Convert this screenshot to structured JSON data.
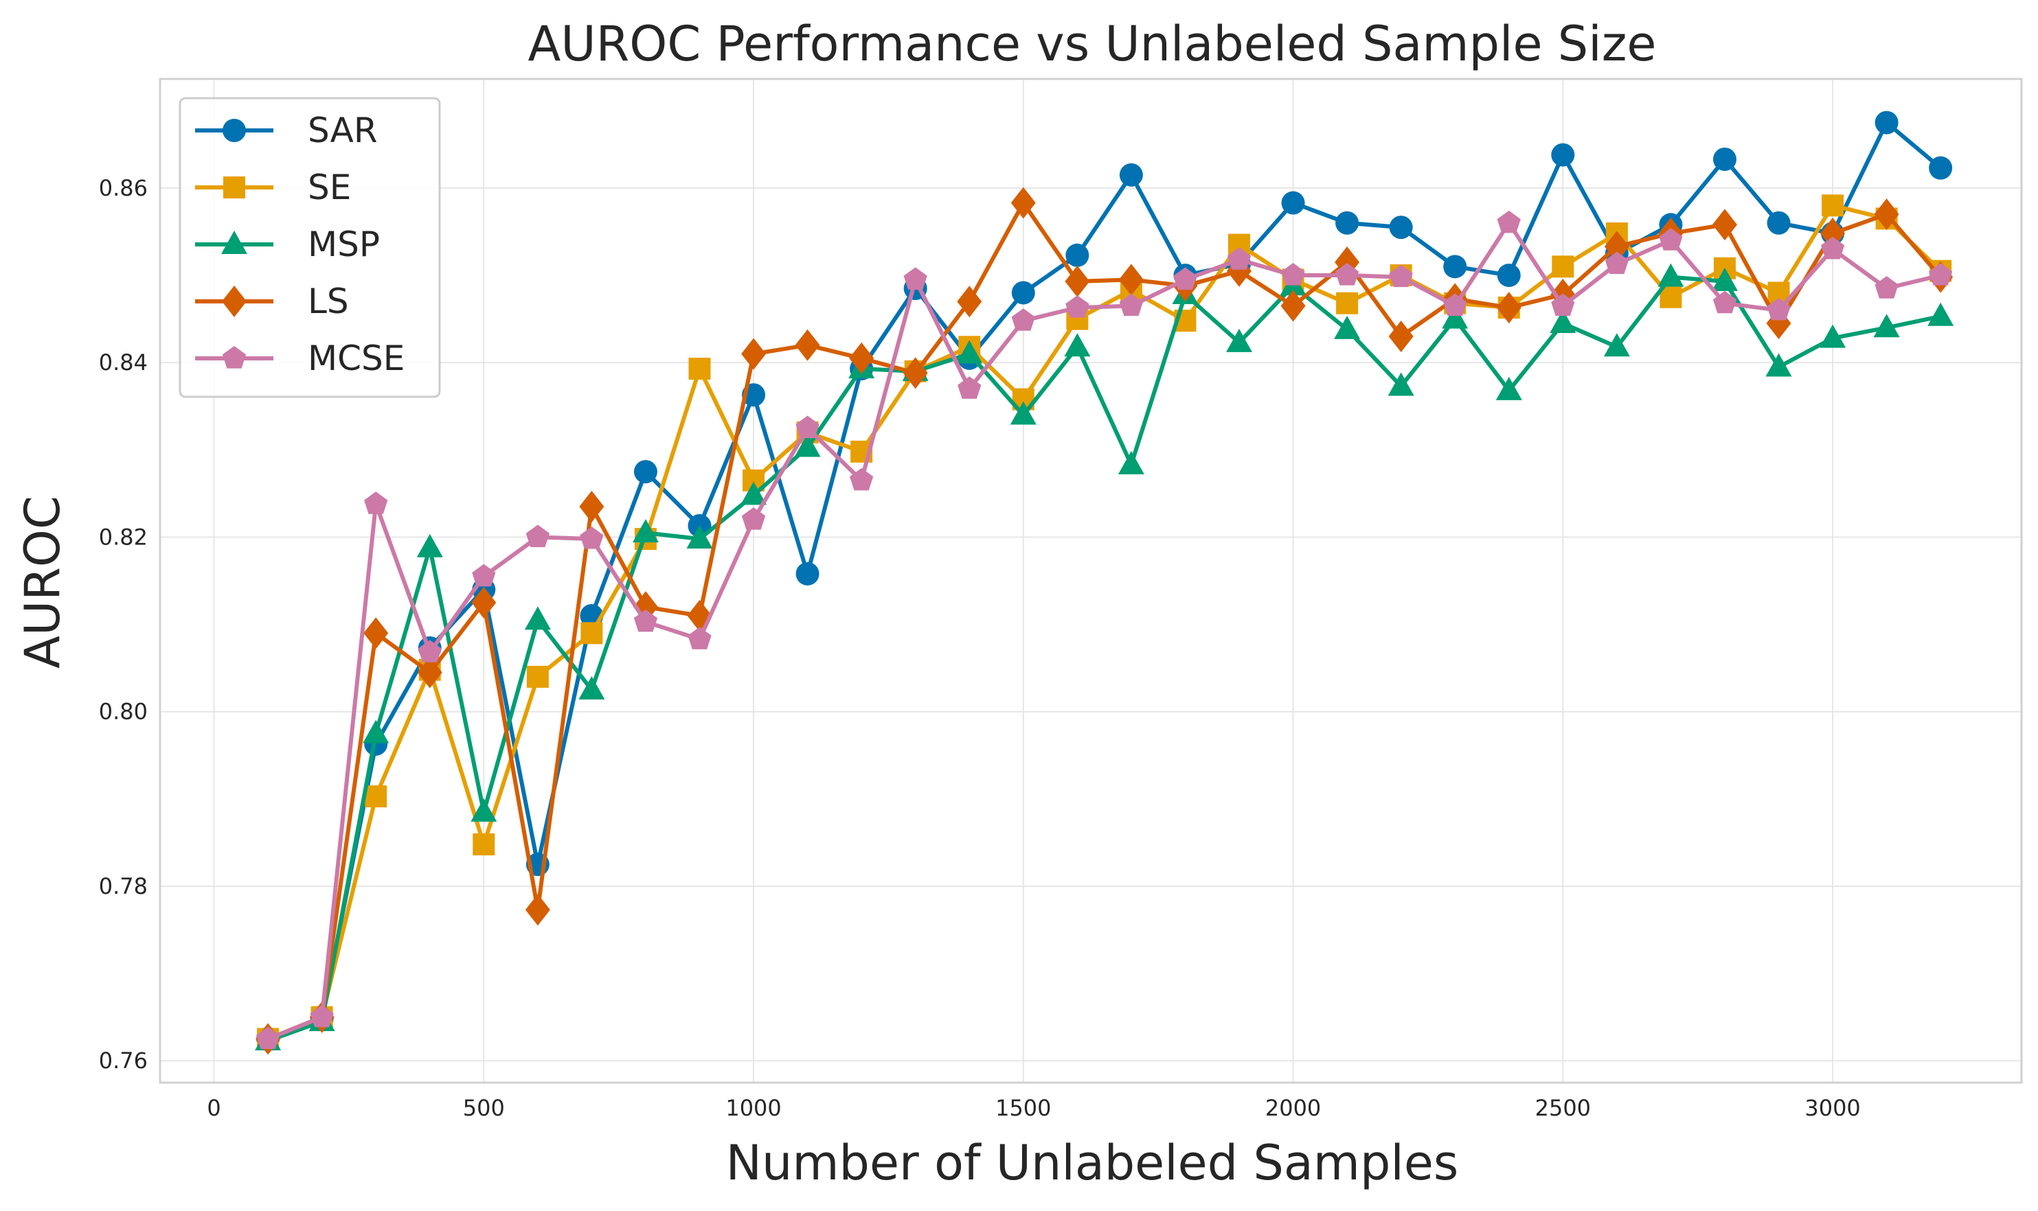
{
  "chart_data": {
    "type": "line",
    "title": "AUROC Performance vs Unlabeled Sample Size",
    "xlabel": "Number of Unlabeled Samples",
    "ylabel": "AUROC",
    "xlim": [
      -100,
      3350
    ],
    "ylim": [
      0.7575,
      0.8725
    ],
    "xticks": [
      0,
      500,
      1000,
      1500,
      2000,
      2500,
      3000
    ],
    "xtick_labels": [
      "0",
      "500",
      "1000",
      "1500",
      "2000",
      "2500",
      "3000"
    ],
    "yticks": [
      0.76,
      0.78,
      0.8,
      0.82,
      0.84,
      0.86
    ],
    "ytick_labels": [
      "0.76",
      "0.78",
      "0.80",
      "0.82",
      "0.84",
      "0.86"
    ],
    "grid": true,
    "legend_position": "top-left",
    "x": [
      100,
      200,
      300,
      400,
      500,
      600,
      700,
      800,
      900,
      1000,
      1100,
      1200,
      1300,
      1400,
      1500,
      1600,
      1700,
      1800,
      1900,
      2000,
      2100,
      2200,
      2300,
      2400,
      2500,
      2600,
      2700,
      2800,
      2900,
      3000,
      3100,
      3200
    ],
    "series": [
      {
        "name": "SAR",
        "color": "#0072b2",
        "marker": "circle",
        "values": [
          0.7625,
          0.7648,
          0.7963,
          0.8073,
          0.814,
          0.7825,
          0.811,
          0.8275,
          0.8213,
          0.8363,
          0.8158,
          0.8393,
          0.8485,
          0.8405,
          0.848,
          0.8523,
          0.8615,
          0.85,
          0.8513,
          0.8583,
          0.856,
          0.8555,
          0.851,
          0.85,
          0.8638,
          0.8525,
          0.8558,
          0.8633,
          0.856,
          0.8548,
          0.8675,
          0.8623
        ]
      },
      {
        "name": "SE",
        "color": "#e69f00",
        "marker": "square",
        "values": [
          0.7625,
          0.765,
          0.7903,
          0.8048,
          0.7848,
          0.804,
          0.809,
          0.8198,
          0.8393,
          0.8265,
          0.832,
          0.8298,
          0.839,
          0.8418,
          0.8358,
          0.845,
          0.8483,
          0.8448,
          0.8535,
          0.8495,
          0.8468,
          0.85,
          0.8468,
          0.8463,
          0.851,
          0.8548,
          0.8475,
          0.8508,
          0.848,
          0.858,
          0.8565,
          0.8505
        ]
      },
      {
        "name": "MSP",
        "color": "#009e73",
        "marker": "triangle",
        "values": [
          0.7623,
          0.7645,
          0.7975,
          0.8188,
          0.7885,
          0.8105,
          0.8025,
          0.8205,
          0.8198,
          0.8248,
          0.8303,
          0.8393,
          0.839,
          0.841,
          0.834,
          0.8418,
          0.8283,
          0.8478,
          0.8423,
          0.8488,
          0.8438,
          0.8373,
          0.845,
          0.8368,
          0.8445,
          0.8418,
          0.8498,
          0.8493,
          0.8395,
          0.8428,
          0.844,
          0.8453
        ]
      },
      {
        "name": "LS",
        "color": "#d55e00",
        "marker": "diamond",
        "values": [
          0.7625,
          0.765,
          0.809,
          0.8045,
          0.8125,
          0.7773,
          0.8235,
          0.812,
          0.811,
          0.841,
          0.842,
          0.8405,
          0.8388,
          0.847,
          0.8583,
          0.8493,
          0.8495,
          0.8488,
          0.8505,
          0.8465,
          0.8515,
          0.843,
          0.8473,
          0.8463,
          0.8478,
          0.8533,
          0.8548,
          0.8558,
          0.8445,
          0.8548,
          0.857,
          0.8498
        ]
      },
      {
        "name": "MCSE",
        "color": "#cc79a7",
        "marker": "pentagon",
        "values": [
          0.7625,
          0.765,
          0.8238,
          0.8068,
          0.8155,
          0.82,
          0.8198,
          0.8103,
          0.8083,
          0.822,
          0.8325,
          0.8265,
          0.8495,
          0.837,
          0.8448,
          0.8463,
          0.8465,
          0.8495,
          0.8518,
          0.85,
          0.85,
          0.8498,
          0.8465,
          0.856,
          0.8465,
          0.8513,
          0.854,
          0.8468,
          0.846,
          0.853,
          0.8485,
          0.85
        ]
      }
    ]
  }
}
